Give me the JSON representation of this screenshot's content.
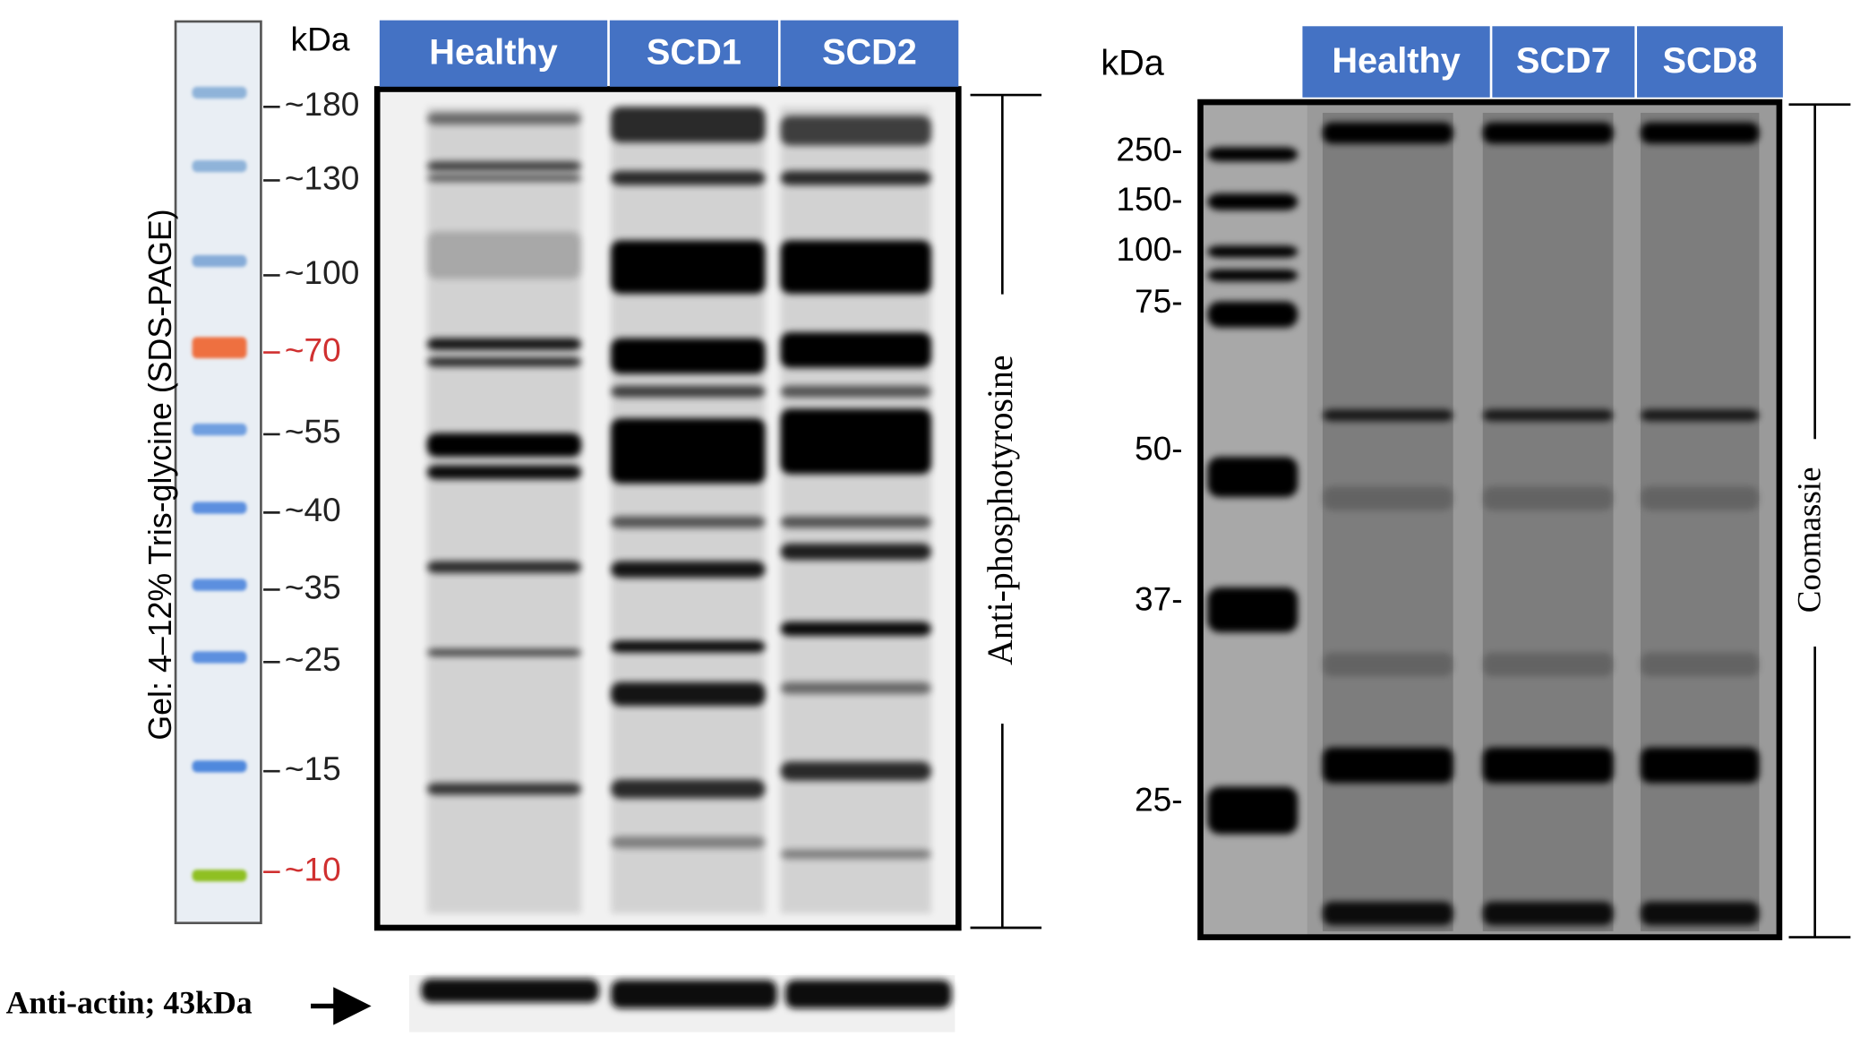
{
  "left_panel": {
    "gel_label": "Gel: 4–12% Tris-glycine (SDS-PAGE)",
    "ladder_unit": "kDa",
    "ladder": [
      "~180",
      "~130",
      "~100",
      "~70",
      "~55",
      "~40",
      "~35",
      "~25",
      "~15",
      "~10"
    ],
    "lanes": [
      "Healthy",
      "SCD1",
      "SCD2"
    ],
    "blot_label": "Anti-phosphotyrosine",
    "loading_control": "Anti-actin; 43kDa"
  },
  "right_panel": {
    "ladder_unit": "kDa",
    "ladder": [
      "250-",
      "150-",
      "100-",
      "75-",
      "50-",
      "37-",
      "25-"
    ],
    "lanes": [
      "Healthy",
      "SCD7",
      "SCD8"
    ],
    "stain_label": "Coomassie"
  }
}
